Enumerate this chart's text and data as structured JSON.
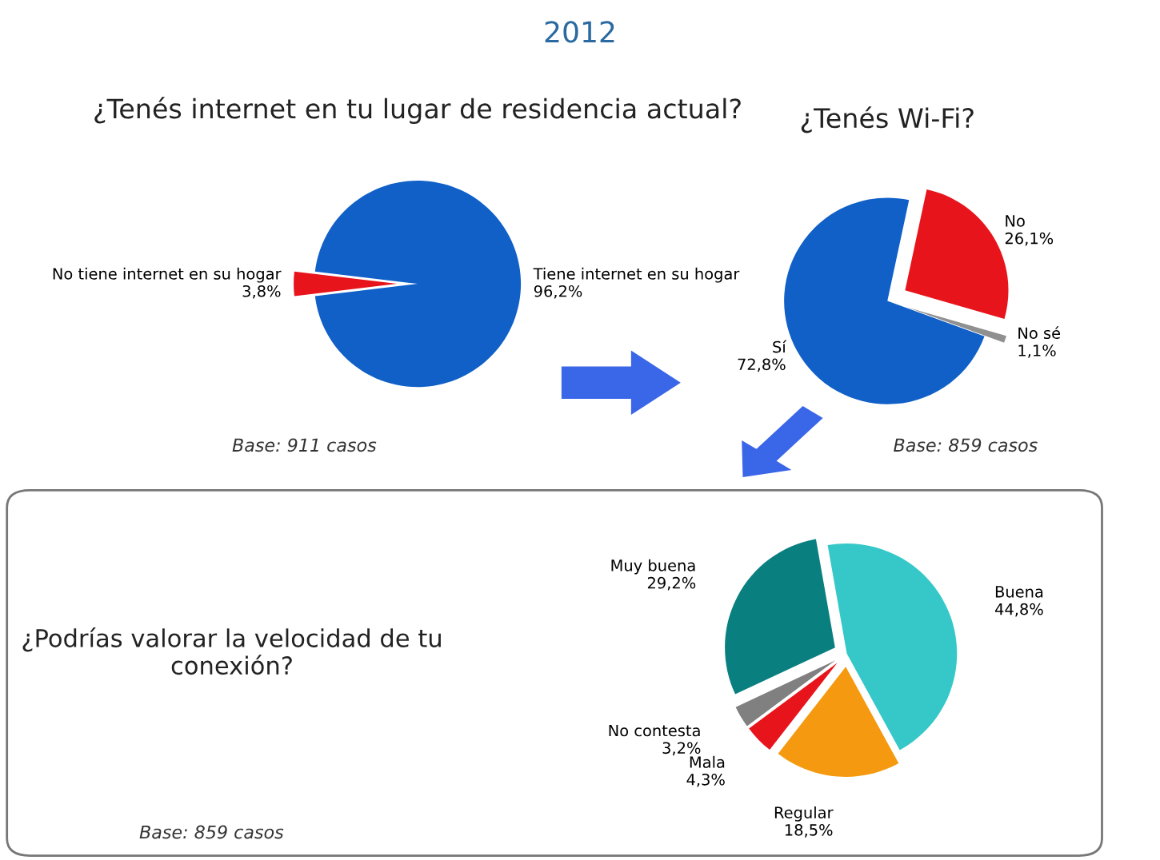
{
  "chart_data": [
    {
      "type": "pie",
      "title": "¿Tenés internet en tu lugar de residencia actual?",
      "categories": [
        "No tiene internet en su hogar",
        "Tiene internet en su hogar"
      ],
      "values": [
        3.8,
        96.2
      ],
      "colors": [
        "#e8141b",
        "#1060c8"
      ],
      "value_labels": [
        "3,8%",
        "96,2%"
      ],
      "annotations": [
        "2012",
        "Base: 911 casos"
      ]
    },
    {
      "type": "pie",
      "title": "¿Tenés Wi-Fi?",
      "categories": [
        "No sé",
        "No",
        "Sí"
      ],
      "values": [
        1.1,
        26.1,
        72.8
      ],
      "colors": [
        "#909090",
        "#e8141b",
        "#1060c8"
      ],
      "value_labels": [
        "1,1%",
        "26,1%",
        "72,8%"
      ],
      "annotations": [
        "Base: 859 casos"
      ]
    },
    {
      "type": "pie",
      "title": "¿Podrías valorar la velocidad de tu conexión?",
      "categories": [
        "Buena",
        "Regular",
        "Mala",
        "No contesta",
        "Muy buena"
      ],
      "values": [
        44.8,
        18.5,
        4.3,
        3.2,
        29.2
      ],
      "colors": [
        "#36c8c8",
        "#f59a10",
        "#e8141b",
        "#808080",
        "#0a7f80"
      ],
      "value_labels": [
        "44,8%",
        "18,5%",
        "4,3%",
        "3,2%",
        "29,2%"
      ],
      "annotations": [
        "Base: 859 casos"
      ]
    }
  ]
}
